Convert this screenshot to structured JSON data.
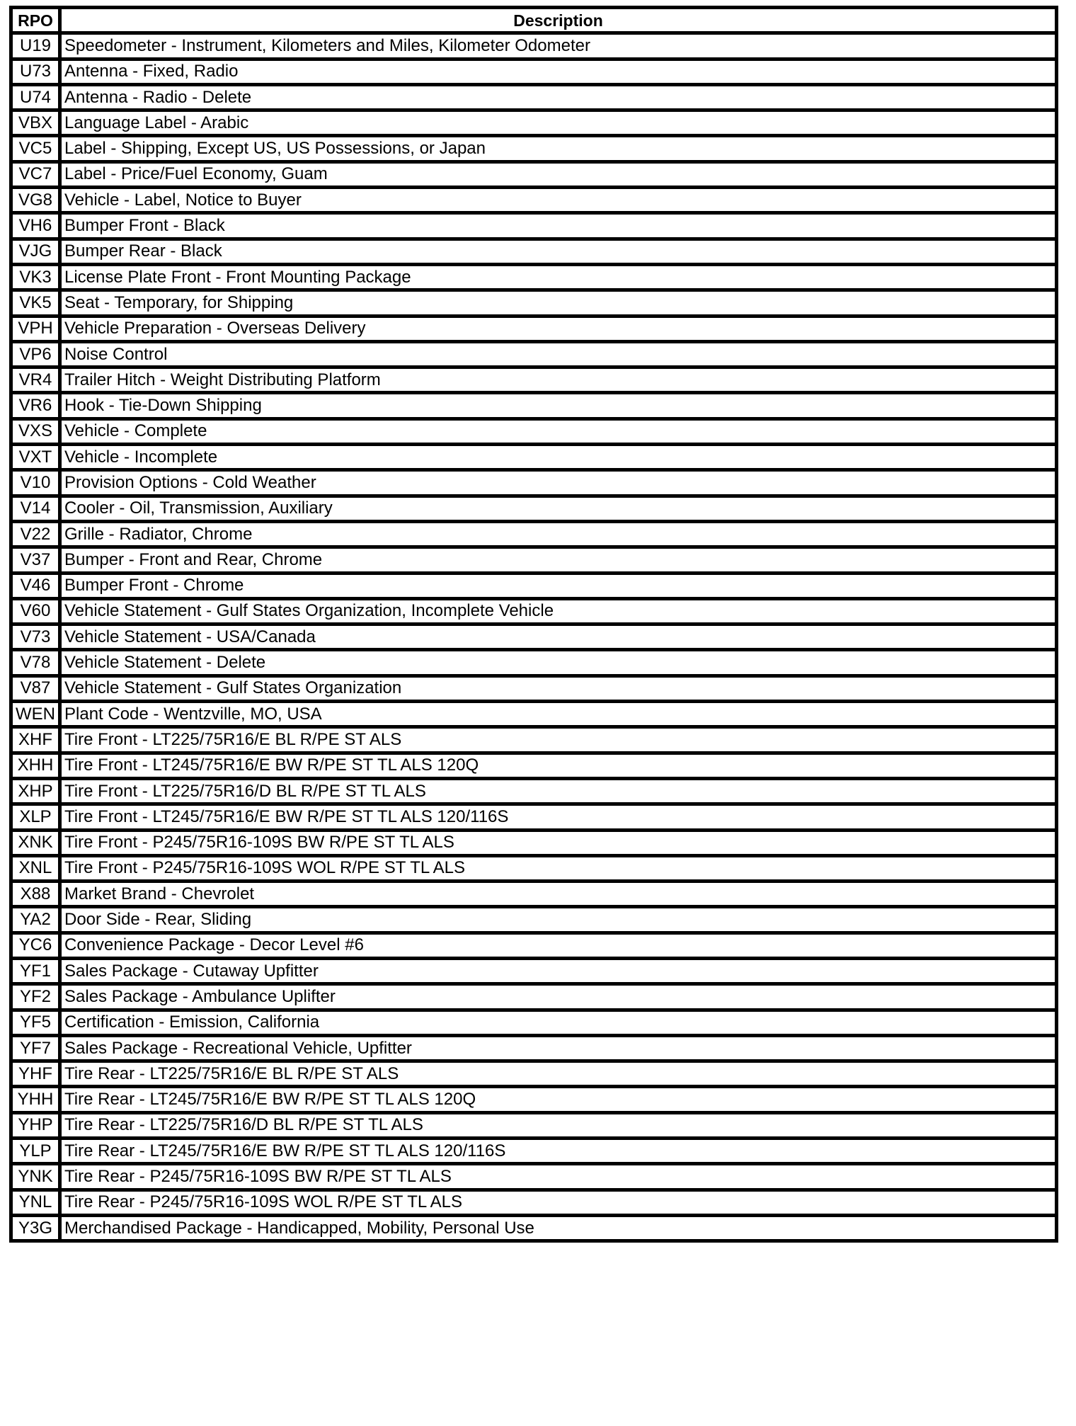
{
  "table": {
    "headers": [
      "RPO",
      "Description"
    ],
    "rows": [
      [
        "U19",
        "Speedometer - Instrument, Kilometers and Miles, Kilometer Odometer"
      ],
      [
        "U73",
        "Antenna - Fixed, Radio"
      ],
      [
        "U74",
        "Antenna - Radio - Delete"
      ],
      [
        "VBX",
        "Language Label - Arabic"
      ],
      [
        "VC5",
        "Label - Shipping, Except US, US Possessions, or Japan"
      ],
      [
        "VC7",
        "Label - Price/Fuel Economy, Guam"
      ],
      [
        "VG8",
        "Vehicle - Label, Notice to Buyer"
      ],
      [
        "VH6",
        "Bumper Front - Black"
      ],
      [
        "VJG",
        "Bumper Rear - Black"
      ],
      [
        "VK3",
        "License Plate Front - Front Mounting Package"
      ],
      [
        "VK5",
        "Seat - Temporary, for Shipping"
      ],
      [
        "VPH",
        "Vehicle Preparation - Overseas Delivery"
      ],
      [
        "VP6",
        "Noise Control"
      ],
      [
        "VR4",
        "Trailer Hitch - Weight Distributing Platform"
      ],
      [
        "VR6",
        "Hook - Tie-Down Shipping"
      ],
      [
        "VXS",
        "Vehicle - Complete"
      ],
      [
        "VXT",
        "Vehicle - Incomplete"
      ],
      [
        "V10",
        "Provision Options - Cold Weather"
      ],
      [
        "V14",
        "Cooler - Oil, Transmission, Auxiliary"
      ],
      [
        "V22",
        "Grille - Radiator, Chrome"
      ],
      [
        "V37",
        "Bumper - Front and Rear, Chrome"
      ],
      [
        "V46",
        "Bumper Front - Chrome"
      ],
      [
        "V60",
        "Vehicle Statement - Gulf States Organization, Incomplete Vehicle"
      ],
      [
        "V73",
        "Vehicle Statement - USA/Canada"
      ],
      [
        "V78",
        "Vehicle Statement - Delete"
      ],
      [
        "V87",
        "Vehicle Statement - Gulf States Organization"
      ],
      [
        "WEN",
        "Plant Code - Wentzville, MO, USA"
      ],
      [
        "XHF",
        "Tire Front - LT225/75R16/E BL R/PE ST ALS"
      ],
      [
        "XHH",
        "Tire Front - LT245/75R16/E BW R/PE ST TL ALS 120Q"
      ],
      [
        "XHP",
        "Tire Front - LT225/75R16/D BL R/PE ST TL ALS"
      ],
      [
        "XLP",
        "Tire Front - LT245/75R16/E BW R/PE ST TL ALS 120/116S"
      ],
      [
        "XNK",
        "Tire Front - P245/75R16-109S BW R/PE ST TL ALS"
      ],
      [
        "XNL",
        "Tire Front - P245/75R16-109S WOL R/PE ST TL ALS"
      ],
      [
        "X88",
        "Market Brand - Chevrolet"
      ],
      [
        "YA2",
        "Door Side - Rear, Sliding"
      ],
      [
        "YC6",
        "Convenience Package - Decor Level #6"
      ],
      [
        "YF1",
        "Sales Package - Cutaway Upfitter"
      ],
      [
        "YF2",
        "Sales Package - Ambulance Uplifter"
      ],
      [
        "YF5",
        "Certification - Emission, California"
      ],
      [
        "YF7",
        "Sales Package - Recreational Vehicle, Upfitter"
      ],
      [
        "YHF",
        "Tire Rear - LT225/75R16/E BL R/PE ST ALS"
      ],
      [
        "YHH",
        "Tire Rear - LT245/75R16/E BW R/PE ST TL ALS 120Q"
      ],
      [
        "YHP",
        "Tire Rear - LT225/75R16/D BL R/PE ST TL ALS"
      ],
      [
        "YLP",
        "Tire Rear - LT245/75R16/E BW R/PE ST TL ALS 120/116S"
      ],
      [
        "YNK",
        "Tire Rear - P245/75R16-109S BW R/PE ST TL ALS"
      ],
      [
        "YNL",
        "Tire Rear - P245/75R16-109S WOL R/PE ST TL ALS"
      ],
      [
        "Y3G",
        "Merchandised Package - Handicapped, Mobility, Personal Use"
      ]
    ]
  }
}
